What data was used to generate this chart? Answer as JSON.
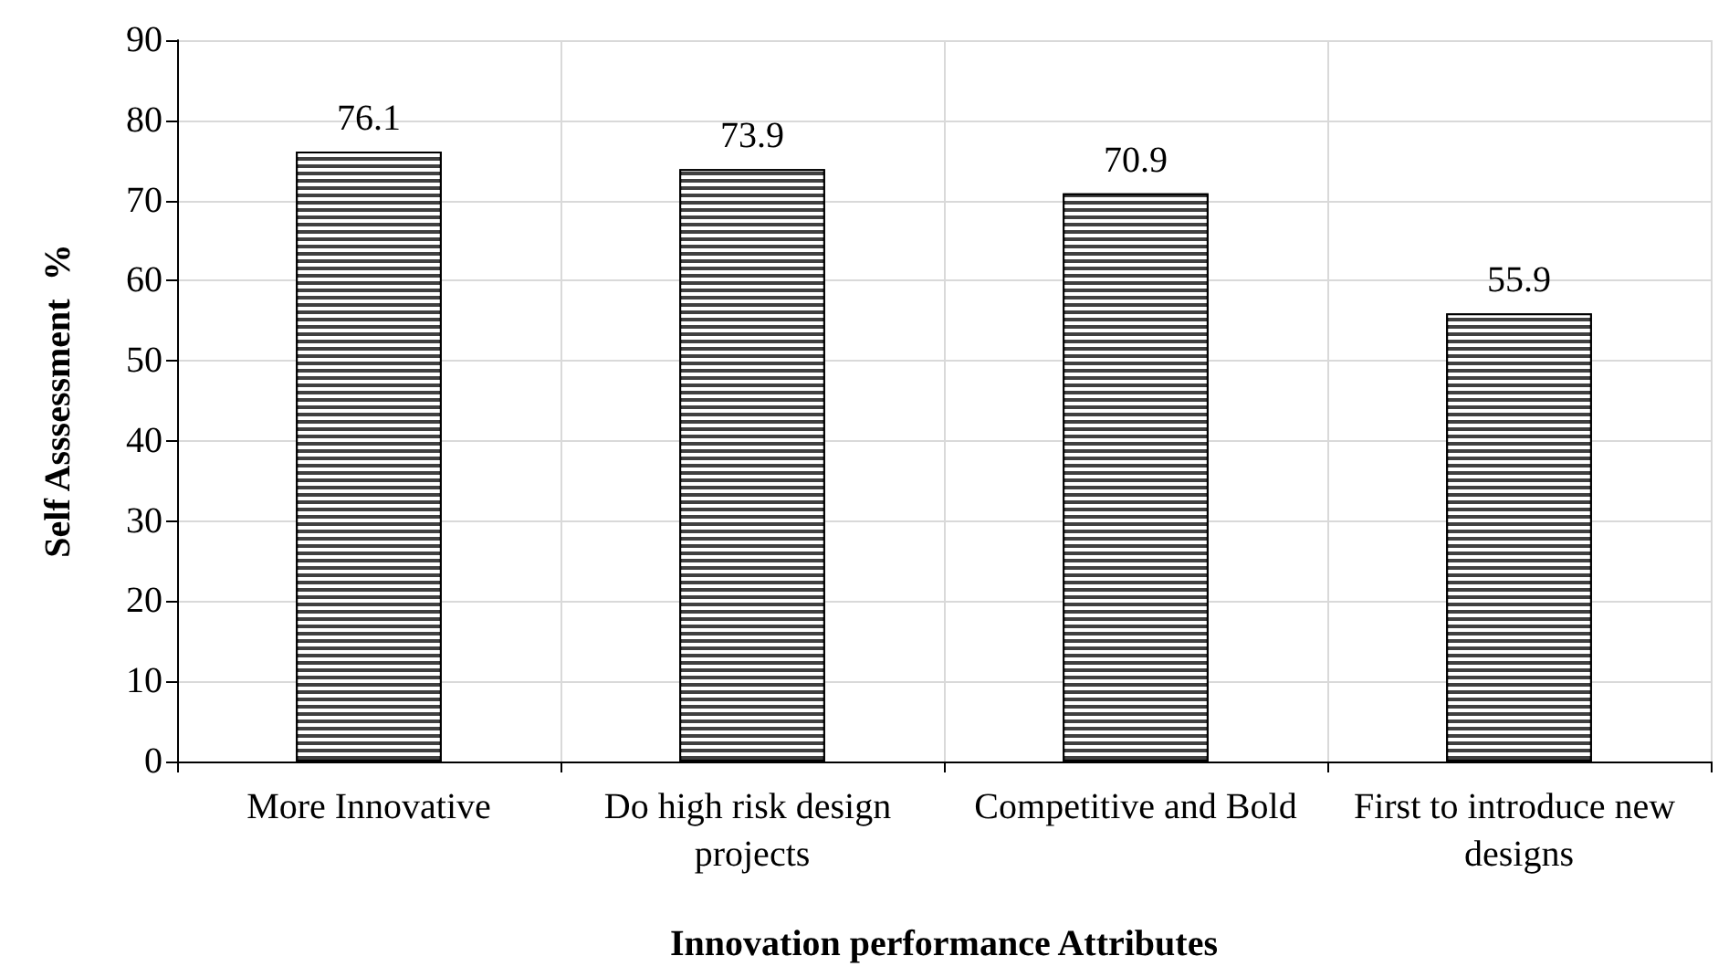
{
  "chart_data": {
    "type": "bar",
    "xlabel": "Innovation performance Attributes",
    "ylabel": "Self Asssessment  %",
    "categories": [
      "More Innovative",
      "Do high risk design projects",
      "Competitive and Bold",
      "First to introduce new designs"
    ],
    "values": [
      76.1,
      73.9,
      70.9,
      55.9
    ],
    "color": "#404040",
    "ylim": [
      0,
      90
    ],
    "yticks": [
      0,
      10,
      20,
      30,
      40,
      50,
      60,
      70,
      80,
      90
    ],
    "grid": true,
    "data_labels": true
  }
}
